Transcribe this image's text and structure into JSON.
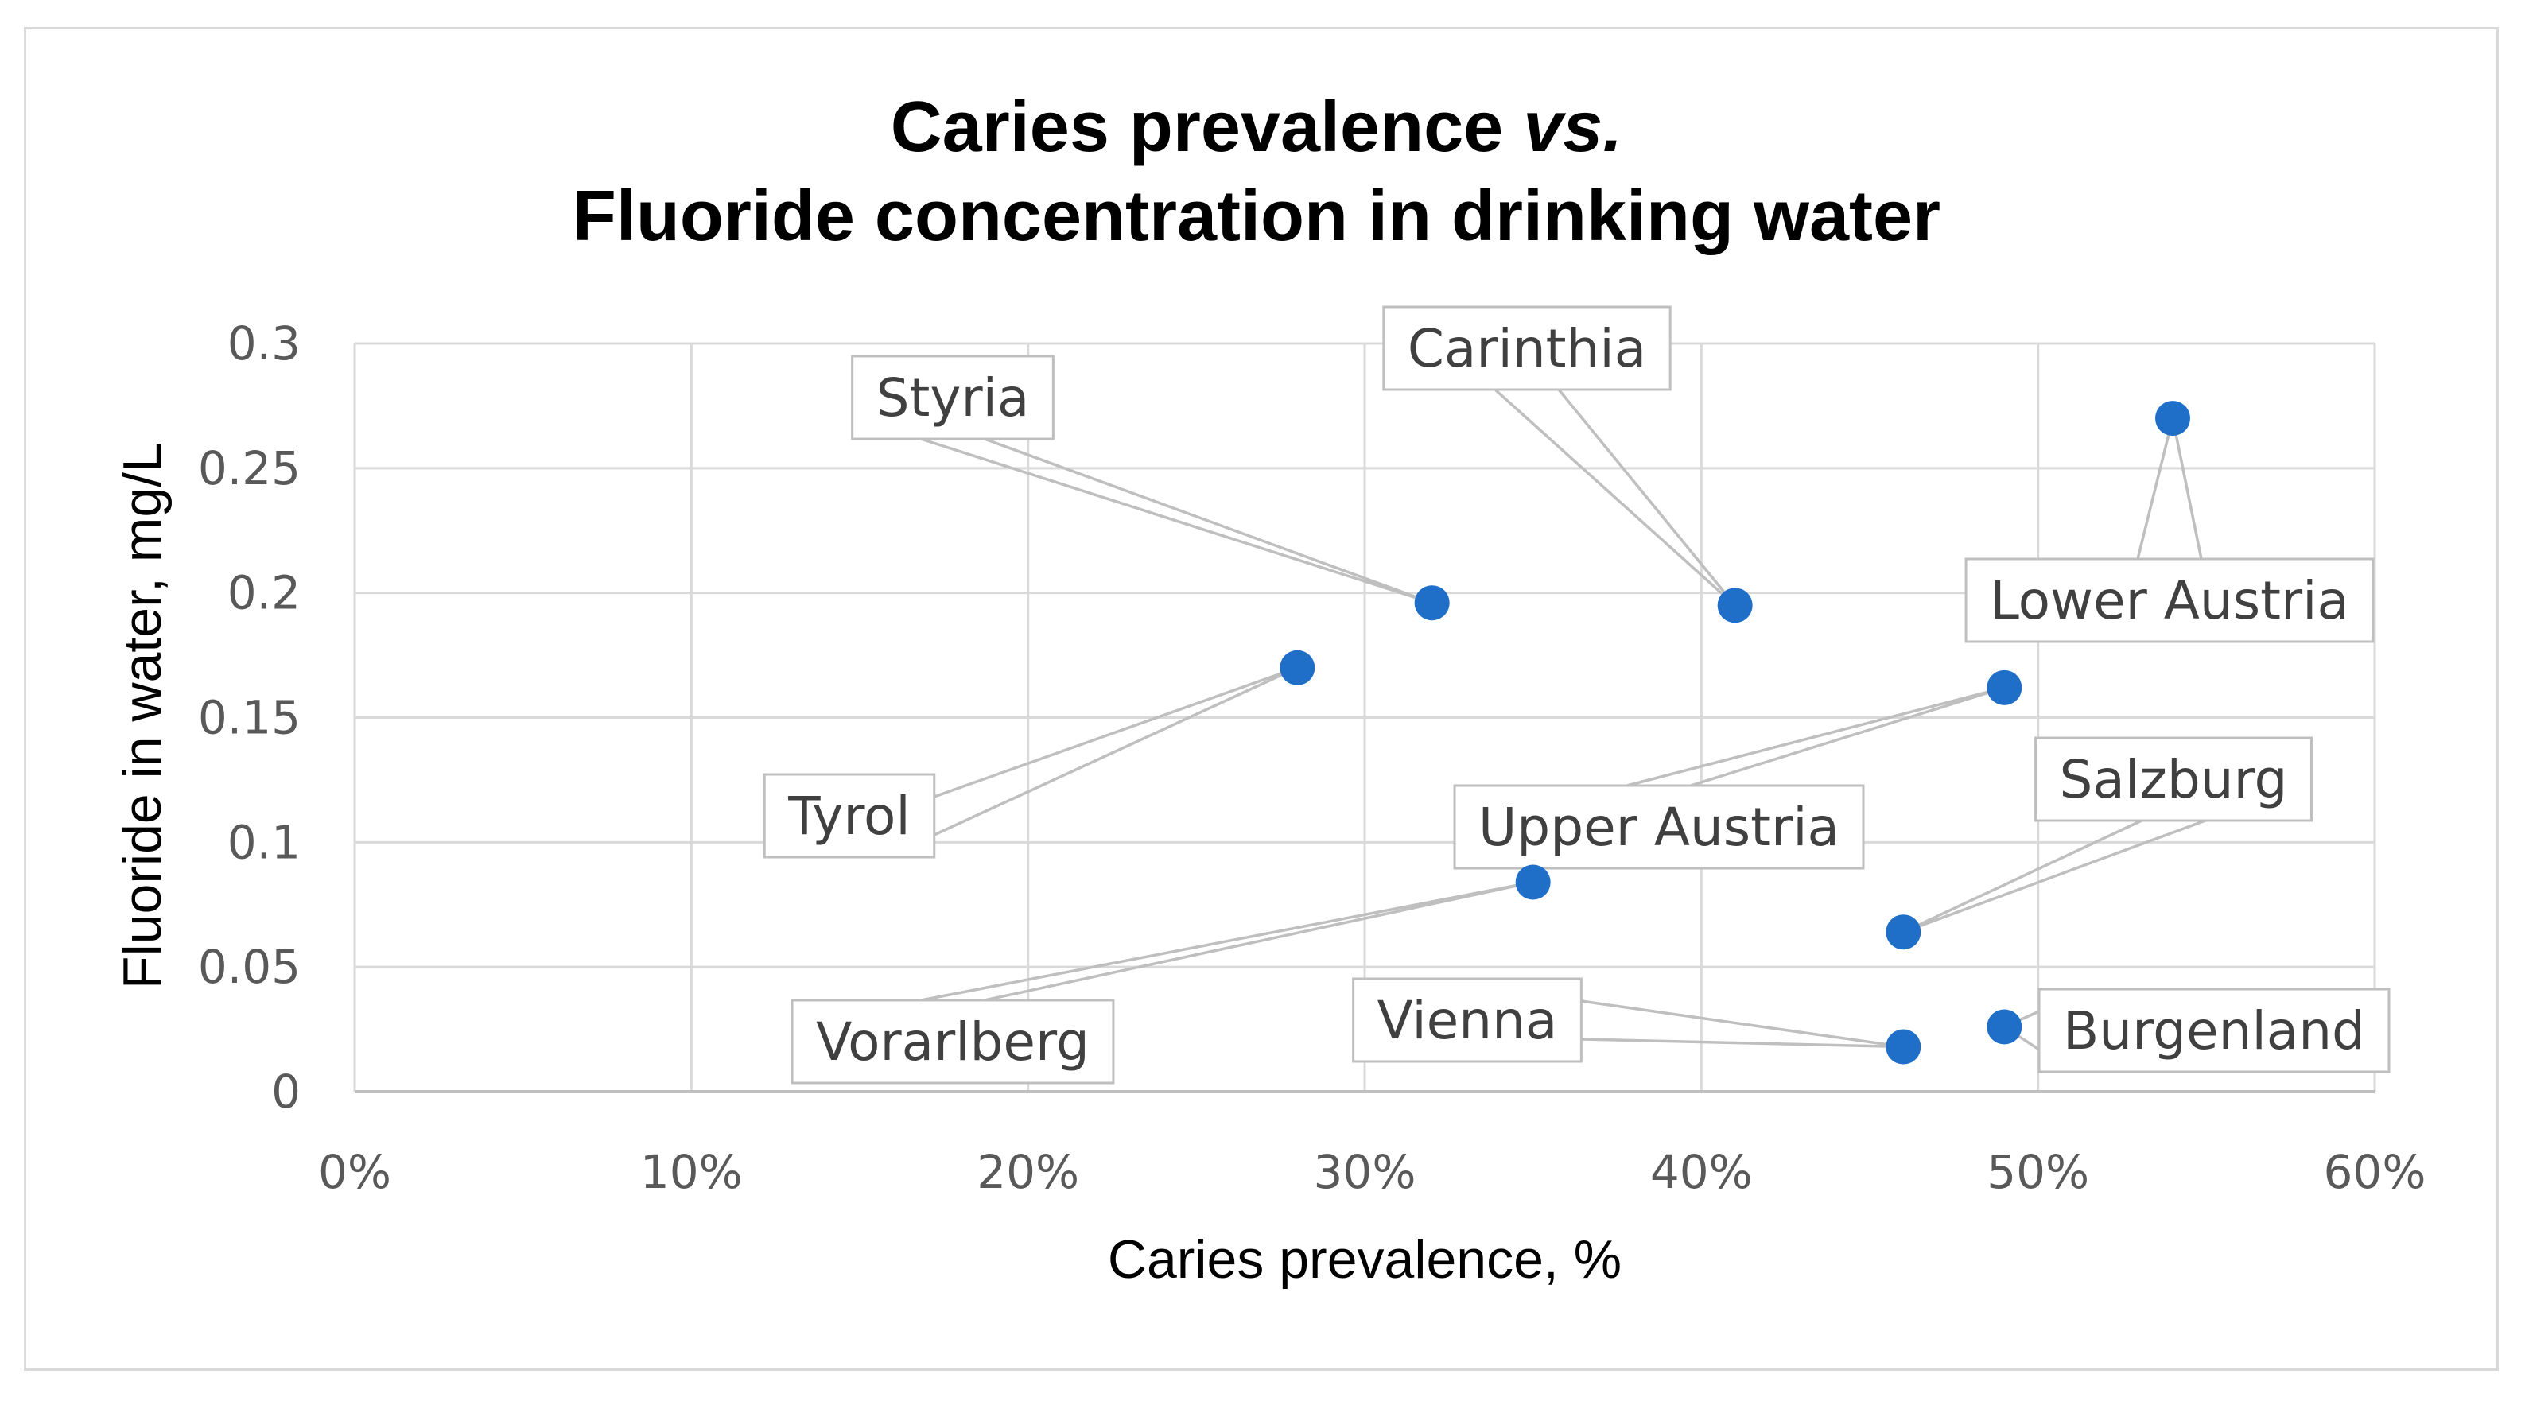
{
  "chart_data": {
    "type": "scatter",
    "title_line1": "Caries prevalence ",
    "title_italic": "vs.",
    "title_line2": "Fluoride concentration in drinking water",
    "xlabel": "Caries prevalence, %",
    "ylabel": "Fluoride in water, mg/L",
    "xlim": [
      0,
      0.6
    ],
    "ylim": [
      0,
      0.3
    ],
    "x_ticks": [
      0,
      0.1,
      0.2,
      0.3,
      0.4,
      0.5,
      0.6
    ],
    "x_tick_labels": [
      "0%",
      "10%",
      "20%",
      "30%",
      "40%",
      "50%",
      "60%"
    ],
    "y_ticks": [
      0,
      0.05,
      0.1,
      0.15,
      0.2,
      0.25,
      0.3
    ],
    "y_tick_labels": [
      "0",
      "0.05",
      "0.1",
      "0.15",
      "0.2",
      "0.25",
      "0.3"
    ],
    "grid": true,
    "marker_color": "#1f6fc9",
    "points": [
      {
        "label": "Styria",
        "x": 0.32,
        "y": 0.196
      },
      {
        "label": "Carinthia",
        "x": 0.41,
        "y": 0.195
      },
      {
        "label": "Lower Austria",
        "x": 0.54,
        "y": 0.27
      },
      {
        "label": "Tyrol",
        "x": 0.28,
        "y": 0.17
      },
      {
        "label": "Upper Austria",
        "x": 0.49,
        "y": 0.162
      },
      {
        "label": "Salzburg",
        "x": 0.46,
        "y": 0.064
      },
      {
        "label": "Vorarlberg",
        "x": 0.35,
        "y": 0.084
      },
      {
        "label": "Vienna",
        "x": 0.46,
        "y": 0.018
      },
      {
        "label": "Burgenland",
        "x": 0.49,
        "y": 0.026
      }
    ]
  }
}
